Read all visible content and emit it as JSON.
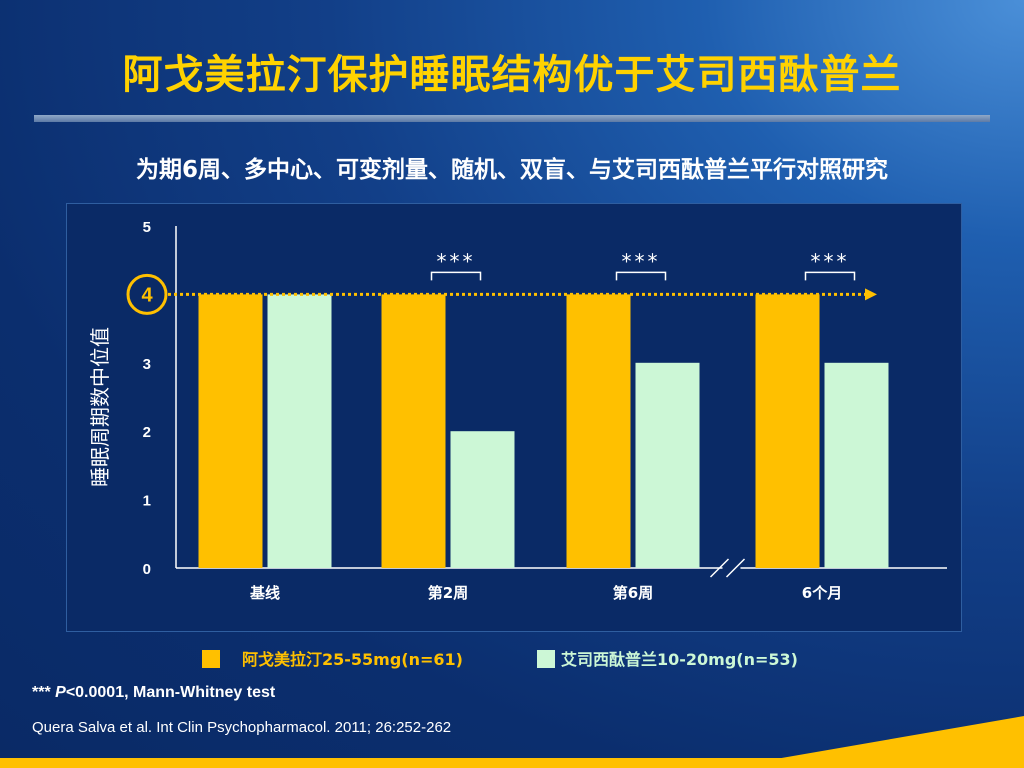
{
  "slide": {
    "title": "阿戈美拉汀保护睡眠结构优于艾司西酞普兰",
    "subtitle": "为期6周、多中心、可变剂量、随机、双盲、与艾司西酞普兰平行对照研究",
    "footnote_stars": "***",
    "footnote_p": "P",
    "footnote_rest": "<0.0001, Mann-Whitney test",
    "citation": "Quera Salva  et al. Int Clin Psychopharmacol. 2011; 26:252-262"
  },
  "colors": {
    "agomelatine": "#ffc000",
    "escitalopram": "#ccf7d6",
    "reference_line": "#ffc000",
    "axis": "#ffffff"
  },
  "chart_data": {
    "type": "bar",
    "ylabel": "睡眠周期数中位值",
    "xlabel": "",
    "ylim": [
      0,
      5
    ],
    "yticks": [
      "0",
      "1",
      "2",
      "3",
      "4",
      "5"
    ],
    "categories": [
      "基线",
      "第2周",
      "第6周",
      "6个月"
    ],
    "series": [
      {
        "name": "阿戈美拉汀25-55mg(n=61)",
        "values": [
          4,
          4,
          4,
          4
        ]
      },
      {
        "name": "艾司西酞普兰10-20mg(n=53)",
        "values": [
          4,
          2,
          3,
          3
        ]
      }
    ],
    "reference_value": 4,
    "reference_label": "4",
    "significance": [
      "",
      "***",
      "***",
      "***"
    ],
    "axis_break_between": [
      "第6周",
      "6个月"
    ],
    "grid": false,
    "legend_position": "bottom"
  }
}
